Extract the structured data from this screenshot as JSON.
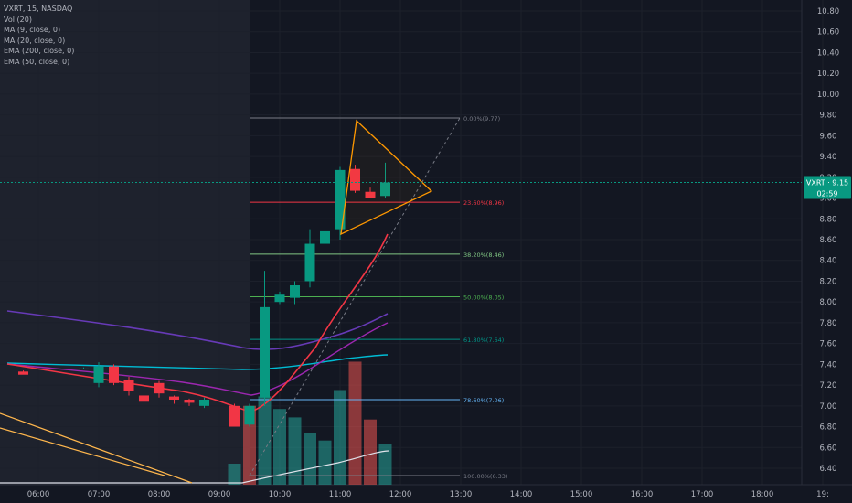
{
  "chart_data": {
    "type": "candlestick",
    "symbol": "VXRT",
    "interval": "15",
    "exchange": "NASDAQ",
    "title": "VXRT, 15, NASDAQ",
    "indicators": [
      "Vol (20)",
      "MA (9, close, 0)",
      "MA (20, close, 0)",
      "EMA (200, close, 0)",
      "EMA (50, close, 0)"
    ],
    "ylim": [
      6.25,
      10.95
    ],
    "y_ticks": [
      "6.40",
      "6.60",
      "6.80",
      "7.00",
      "7.20",
      "7.40",
      "7.60",
      "7.80",
      "8.00",
      "8.20",
      "8.40",
      "8.60",
      "8.80",
      "9.00",
      "9.20",
      "9.40",
      "9.60",
      "9.80",
      "10.00",
      "10.20",
      "10.40",
      "10.60",
      "10.80"
    ],
    "x_ticks": [
      "06:00",
      "07:00",
      "08:00",
      "09:00",
      "10:00",
      "11:00",
      "12:00",
      "13:00",
      "14:00",
      "15:00",
      "16:00",
      "17:00",
      "18:00",
      "19:"
    ],
    "x_tick_hours": [
      6,
      7,
      8,
      9,
      10,
      11,
      12,
      13,
      14,
      15,
      16,
      17,
      18,
      19
    ],
    "premarket_end": 9.5,
    "candles": [
      {
        "t": 5.75,
        "o": 7.36,
        "h": 7.37,
        "l": 7.32,
        "c": 7.33
      },
      {
        "t": 6.0,
        "o": 7.36,
        "h": 7.37,
        "l": 7.35,
        "c": 7.36
      },
      {
        "t": 6.25,
        "o": 7.36,
        "h": 7.38,
        "l": 7.35,
        "c": 7.36
      },
      {
        "t": 6.5,
        "o": 7.36,
        "h": 7.37,
        "l": 7.35,
        "c": 7.36
      },
      {
        "t": 6.75,
        "o": 7.37,
        "h": 7.38,
        "l": 7.35,
        "c": 7.36
      },
      {
        "t": 7.0,
        "o": 7.37,
        "h": 7.42,
        "l": 7.34,
        "c": 7.38
      },
      {
        "t": 7.0,
        "o": 7.38,
        "h": 7.42,
        "l": 7.34,
        "c": 7.38
      },
      {
        "t": 6.75,
        "o": 7.36,
        "h": 7.37,
        "l": 7.35,
        "c": 7.37
      },
      {
        "t": 7.0,
        "o": 7.37,
        "h": 7.42,
        "l": 7.35,
        "c": 7.36
      },
      {
        "t": 7.0,
        "o": 7.38,
        "h": 7.42,
        "l": 7.34,
        "c": 7.38
      }
    ],
    "ohlc": [
      {
        "t": 5.75,
        "o": 7.33,
        "h": 7.34,
        "l": 7.31,
        "c": 7.3
      },
      {
        "t": 6.75,
        "o": 7.36,
        "h": 7.37,
        "l": 7.35,
        "c": 7.36
      },
      {
        "t": 7.0,
        "o": 7.22,
        "h": 7.42,
        "l": 7.18,
        "c": 7.38
      },
      {
        "t": 7.25,
        "o": 7.38,
        "h": 7.4,
        "l": 7.2,
        "c": 7.22
      },
      {
        "t": 7.5,
        "o": 7.25,
        "h": 7.28,
        "l": 7.1,
        "c": 7.14
      },
      {
        "t": 7.75,
        "o": 7.1,
        "h": 7.12,
        "l": 7.0,
        "c": 7.04
      },
      {
        "t": 8.0,
        "o": 7.22,
        "h": 7.24,
        "l": 7.08,
        "c": 7.12
      },
      {
        "t": 8.25,
        "o": 7.09,
        "h": 7.1,
        "l": 7.02,
        "c": 7.06
      },
      {
        "t": 8.5,
        "o": 7.06,
        "h": 7.07,
        "l": 7.0,
        "c": 7.03
      },
      {
        "t": 8.75,
        "o": 7.0,
        "h": 7.08,
        "l": 6.98,
        "c": 7.06
      },
      {
        "t": 9.25,
        "o": 7.0,
        "h": 7.02,
        "l": 6.8,
        "c": 6.8
      },
      {
        "t": 9.5,
        "o": 6.82,
        "h": 7.02,
        "l": 6.8,
        "c": 7.0
      },
      {
        "t": 9.75,
        "o": 7.08,
        "h": 8.3,
        "l": 7.0,
        "c": 7.95
      },
      {
        "t": 10.0,
        "o": 8.0,
        "h": 8.1,
        "l": 7.98,
        "c": 8.07
      },
      {
        "t": 10.25,
        "o": 8.04,
        "h": 8.2,
        "l": 7.98,
        "c": 8.16
      },
      {
        "t": 10.5,
        "o": 8.2,
        "h": 8.7,
        "l": 8.14,
        "c": 8.56
      },
      {
        "t": 10.75,
        "o": 8.56,
        "h": 8.7,
        "l": 8.5,
        "c": 8.68
      },
      {
        "t": 11.0,
        "o": 8.7,
        "h": 9.3,
        "l": 8.6,
        "c": 9.27
      },
      {
        "t": 11.25,
        "o": 9.28,
        "h": 9.32,
        "l": 9.05,
        "c": 9.07
      },
      {
        "t": 11.5,
        "o": 9.06,
        "h": 9.1,
        "l": 9.0,
        "c": 9.0
      },
      {
        "t": 11.75,
        "o": 9.02,
        "h": 9.34,
        "l": 9.0,
        "c": 9.15
      }
    ],
    "volume": [
      {
        "t": 9.25,
        "v": 0.2,
        "up": true
      },
      {
        "t": 9.5,
        "v": 0.75,
        "up": false
      },
      {
        "t": 9.75,
        "v": 0.84,
        "up": true
      },
      {
        "t": 10.0,
        "v": 0.72,
        "up": true
      },
      {
        "t": 10.25,
        "v": 0.64,
        "up": true
      },
      {
        "t": 10.5,
        "v": 0.49,
        "up": true
      },
      {
        "t": 10.75,
        "v": 0.42,
        "up": true
      },
      {
        "t": 11.0,
        "v": 0.9,
        "up": true
      },
      {
        "t": 11.25,
        "v": 1.17,
        "up": false
      },
      {
        "t": 11.5,
        "v": 0.62,
        "up": false
      },
      {
        "t": 11.75,
        "v": 0.39,
        "up": true
      }
    ],
    "fibonacci": [
      {
        "label": "0.00%(9.77)",
        "value": 9.77,
        "color": "#787b86"
      },
      {
        "label": "23.60%(8.96)",
        "value": 8.96,
        "color": "#f23645"
      },
      {
        "label": "38.20%(8.46)",
        "value": 8.46,
        "color": "#81c784"
      },
      {
        "label": "50.00%(8.05)",
        "value": 8.05,
        "color": "#4caf50"
      },
      {
        "label": "61.80%(7.64)",
        "value": 7.64,
        "color": "#009688"
      },
      {
        "label": "78.60%(7.06)",
        "value": 7.06,
        "color": "#64b5f6"
      },
      {
        "label": "100.00%(6.33)",
        "value": 6.33,
        "color": "#787b86"
      }
    ],
    "current_price_label": "VXRT · 9.15",
    "current_price": 9.15,
    "countdown": "02:59",
    "colors": {
      "background": "#131722",
      "premarket": "#1e222d",
      "up": "#089981",
      "down": "#f23645",
      "ma9": "#f23645",
      "ma20": "#673ab7",
      "ema200": "#00bcd4",
      "ema50": "#9c27b0",
      "triangle": "#ff9800",
      "price_line": "#089981",
      "grid": "#1e222d"
    }
  }
}
